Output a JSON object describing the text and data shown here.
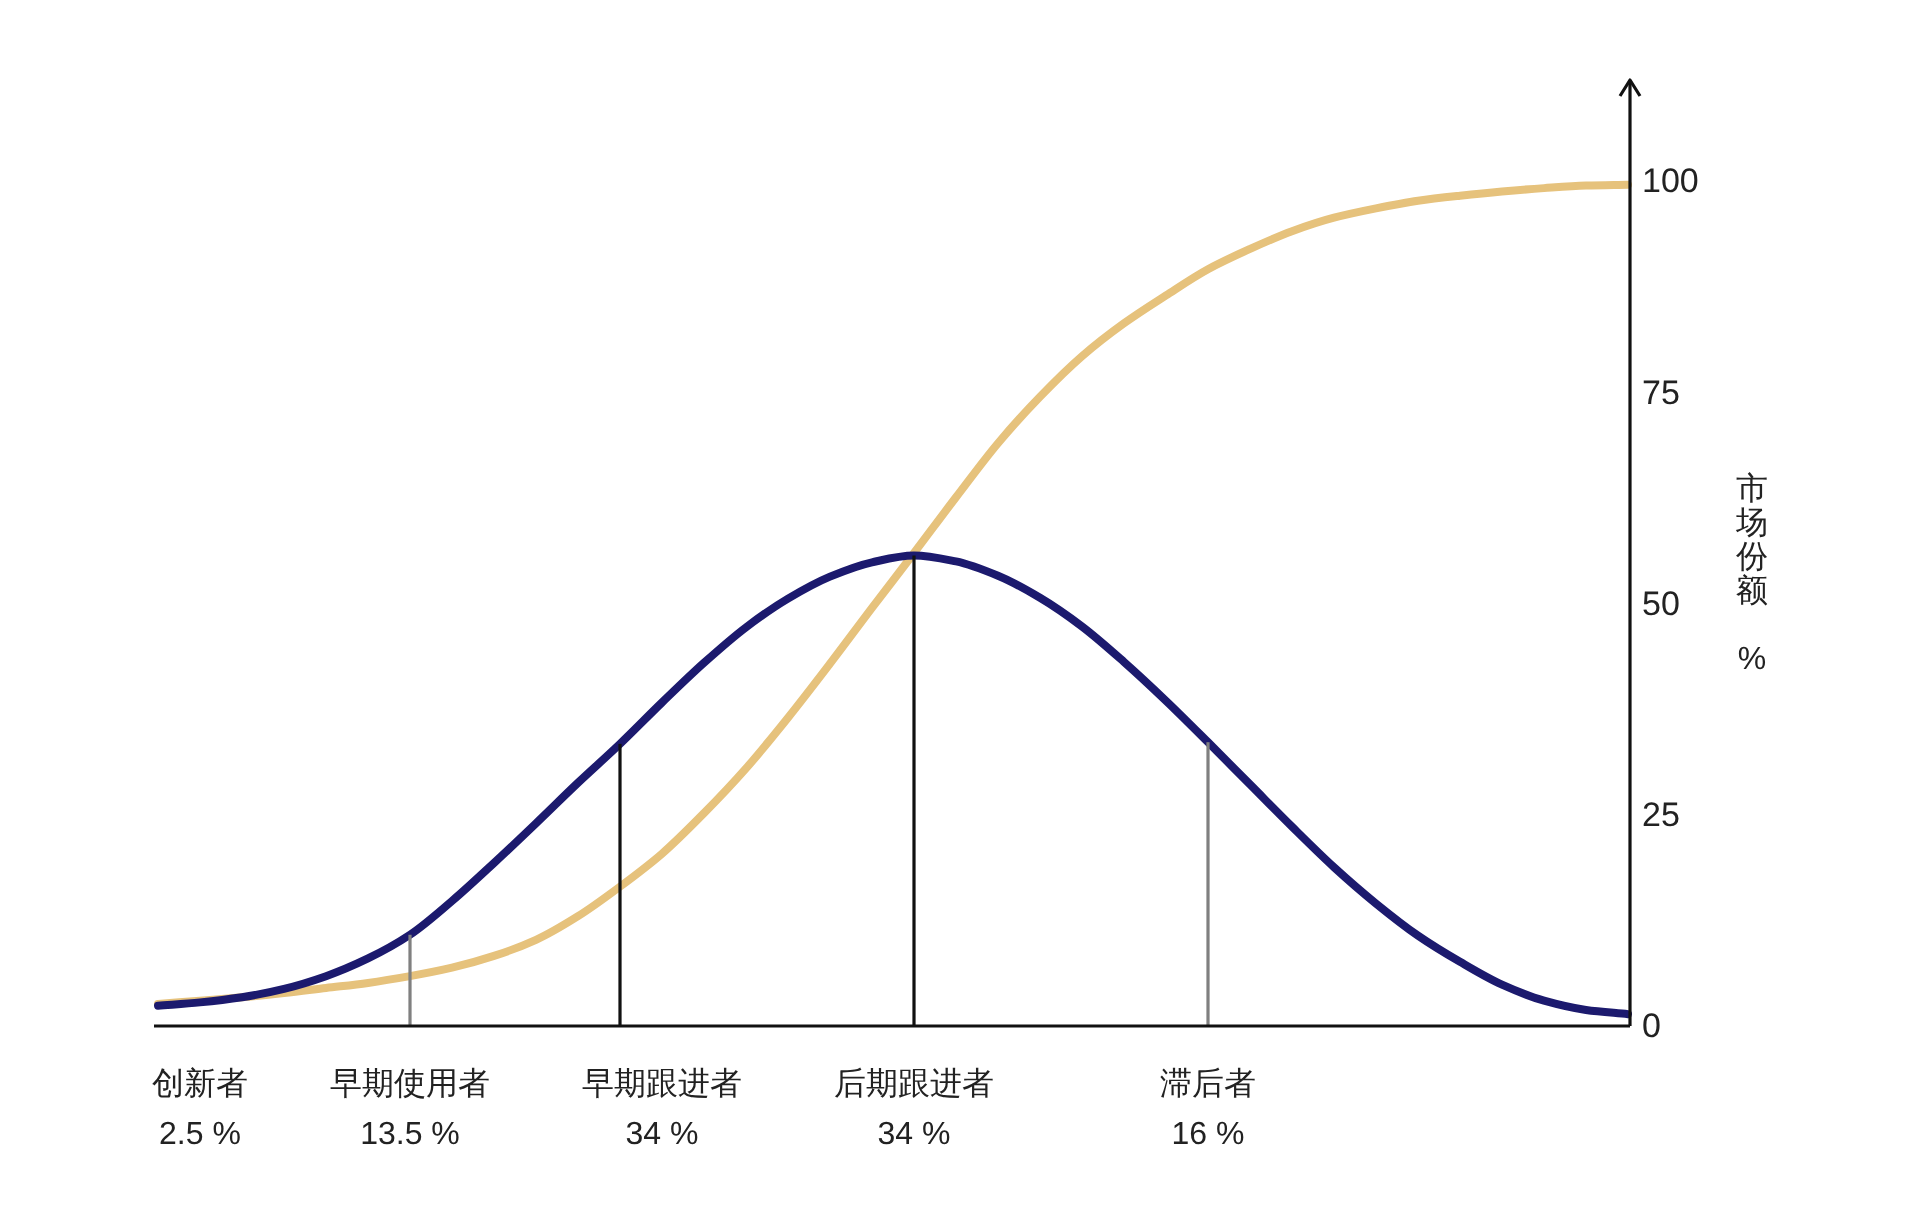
{
  "chart_data": {
    "type": "line",
    "ylabel": "市场份额 %",
    "categories": [
      null,
      "创新者\n2.5 %",
      null,
      null,
      null,
      null,
      "早期使用者\n13.5 %",
      null,
      null,
      null,
      null,
      null,
      "早期跟进者\n34 %",
      null,
      null,
      null,
      null,
      null,
      "后期跟进者\n34 %",
      null,
      null,
      null,
      null,
      null,
      null,
      "滞后者\n16 %",
      null,
      null,
      null,
      null,
      null,
      null,
      null,
      null,
      null,
      null
    ],
    "series": [
      {
        "color": "#e6c27c",
        "values": [
          2.6,
          3.0,
          3.4,
          3.9,
          4.5,
          5.1,
          5.9,
          6.9,
          8.3,
          10.2,
          13,
          16.5,
          20.4,
          25.2,
          30.5,
          36.5,
          42.9,
          49.5,
          56,
          62.6,
          69,
          74.5,
          79.3,
          83.2,
          86.5,
          89.6,
          92,
          94.1,
          95.7,
          96.8,
          97.7,
          98.3,
          98.8,
          99.2,
          99.5,
          99.6
        ]
      },
      {
        "color": "#1c1a6e",
        "values": [
          2.4,
          2.8,
          3.4,
          4.4,
          5.9,
          8,
          10.8,
          14.8,
          19.3,
          24,
          28.8,
          33.4,
          38.3,
          43,
          47.2,
          50.6,
          53.2,
          54.9,
          55.7,
          55,
          53.3,
          50.7,
          47.3,
          43.1,
          38.5,
          33.6,
          28.6,
          23.6,
          18.8,
          14.5,
          10.7,
          7.6,
          4.9,
          3,
          1.9,
          1.4
        ]
      },
      {
        "type": "bar",
        "colors": [
          null,
          null,
          null,
          null,
          null,
          null,
          "#808080",
          null,
          null,
          null,
          null,
          "#111111",
          null,
          null,
          null,
          null,
          null,
          null,
          "#111111",
          null,
          null,
          null,
          null,
          null,
          null,
          "#808080",
          null,
          null,
          null,
          null,
          null,
          null,
          null,
          null,
          null,
          null
        ],
        "values": [
          null,
          null,
          null,
          null,
          null,
          null,
          10.8,
          null,
          null,
          null,
          null,
          33.4,
          null,
          null,
          null,
          null,
          null,
          null,
          55.7,
          null,
          null,
          null,
          null,
          null,
          null,
          33.6,
          null,
          null,
          null,
          null,
          null,
          null,
          null,
          null,
          null,
          null
        ]
      }
    ],
    "ylim": [
      0,
      112
    ],
    "yticks": [
      0,
      25,
      50,
      75,
      100
    ]
  }
}
